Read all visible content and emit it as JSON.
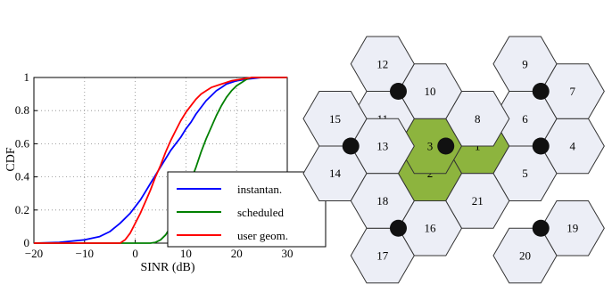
{
  "chart_data": {
    "type": "line",
    "xlabel": "SINR (dB)",
    "ylabel": "CDF",
    "xlim": [
      -20,
      30
    ],
    "ylim": [
      0,
      1
    ],
    "xticks": [
      "−20",
      "−10",
      "0",
      "10",
      "20",
      "30"
    ],
    "yticks": [
      "0",
      "0.2",
      "0.4",
      "0.6",
      "0.8",
      "1"
    ],
    "grid": true,
    "legend_position": "lower-right",
    "series": [
      {
        "name": "instantan.",
        "color": "#0000ff",
        "points": [
          [
            -20,
            0
          ],
          [
            -15,
            0.005
          ],
          [
            -10,
            0.02
          ],
          [
            -7,
            0.04
          ],
          [
            -5,
            0.07
          ],
          [
            -3,
            0.12
          ],
          [
            -1,
            0.18
          ],
          [
            0,
            0.22
          ],
          [
            1,
            0.26
          ],
          [
            2,
            0.31
          ],
          [
            3,
            0.36
          ],
          [
            4,
            0.41
          ],
          [
            5,
            0.46
          ],
          [
            6,
            0.51
          ],
          [
            7,
            0.56
          ],
          [
            8,
            0.6
          ],
          [
            9,
            0.64
          ],
          [
            10,
            0.69
          ],
          [
            11,
            0.73
          ],
          [
            12,
            0.78
          ],
          [
            13,
            0.82
          ],
          [
            14,
            0.86
          ],
          [
            15,
            0.89
          ],
          [
            16,
            0.92
          ],
          [
            17,
            0.94
          ],
          [
            18,
            0.96
          ],
          [
            20,
            0.98
          ],
          [
            22,
            0.99
          ],
          [
            25,
            1.0
          ],
          [
            30,
            1.0
          ]
        ]
      },
      {
        "name": "scheduled",
        "color": "#008000",
        "points": [
          [
            -20,
            0
          ],
          [
            3,
            0
          ],
          [
            4,
            0.005
          ],
          [
            5,
            0.02
          ],
          [
            6,
            0.05
          ],
          [
            7,
            0.1
          ],
          [
            8,
            0.16
          ],
          [
            9,
            0.23
          ],
          [
            10,
            0.3
          ],
          [
            11,
            0.38
          ],
          [
            12,
            0.46
          ],
          [
            13,
            0.55
          ],
          [
            14,
            0.63
          ],
          [
            15,
            0.7
          ],
          [
            16,
            0.77
          ],
          [
            17,
            0.83
          ],
          [
            18,
            0.88
          ],
          [
            19,
            0.92
          ],
          [
            20,
            0.95
          ],
          [
            21,
            0.97
          ],
          [
            22,
            0.99
          ],
          [
            23,
            1.0
          ],
          [
            30,
            1.0
          ]
        ]
      },
      {
        "name": "user geom.",
        "color": "#ff0000",
        "points": [
          [
            -20,
            0
          ],
          [
            -3,
            0
          ],
          [
            -2,
            0.02
          ],
          [
            -1,
            0.06
          ],
          [
            0,
            0.12
          ],
          [
            1,
            0.18
          ],
          [
            2,
            0.25
          ],
          [
            3,
            0.32
          ],
          [
            4,
            0.4
          ],
          [
            5,
            0.47
          ],
          [
            6,
            0.55
          ],
          [
            7,
            0.62
          ],
          [
            8,
            0.68
          ],
          [
            9,
            0.74
          ],
          [
            10,
            0.79
          ],
          [
            11,
            0.83
          ],
          [
            12,
            0.87
          ],
          [
            13,
            0.9
          ],
          [
            14,
            0.92
          ],
          [
            15,
            0.94
          ],
          [
            17,
            0.96
          ],
          [
            19,
            0.98
          ],
          [
            21,
            0.99
          ],
          [
            23,
            1.0
          ],
          [
            30,
            1.0
          ]
        ]
      }
    ]
  },
  "network_map": {
    "cells": [
      {
        "label": "1",
        "col": 1,
        "row": 0,
        "highlighted": true
      },
      {
        "label": "2",
        "col": 0,
        "row": 1,
        "highlighted": true
      },
      {
        "label": "3",
        "col": 0,
        "row": 0,
        "highlighted": true
      },
      {
        "label": "4",
        "col": 3,
        "row": 0,
        "highlighted": false
      },
      {
        "label": "5",
        "col": 2,
        "row": 1,
        "highlighted": false
      },
      {
        "label": "6",
        "col": 2,
        "row": -1,
        "highlighted": false
      },
      {
        "label": "7",
        "col": 3,
        "row": -2,
        "highlighted": false
      },
      {
        "label": "8",
        "col": 1,
        "row": -1,
        "highlighted": false
      },
      {
        "label": "9",
        "col": 2,
        "row": -3,
        "highlighted": false
      },
      {
        "label": "10",
        "col": 0,
        "row": -2,
        "highlighted": false
      },
      {
        "label": "11",
        "col": -1,
        "row": -1,
        "highlighted": false
      },
      {
        "label": "12",
        "col": -1,
        "row": -3,
        "highlighted": false
      },
      {
        "label": "13",
        "col": -1,
        "row": 0,
        "highlighted": false
      },
      {
        "label": "14",
        "col": -2,
        "row": 1,
        "highlighted": false
      },
      {
        "label": "15",
        "col": -2,
        "row": -1,
        "highlighted": false
      },
      {
        "label": "16",
        "col": 0,
        "row": 3,
        "highlighted": false
      },
      {
        "label": "17",
        "col": -1,
        "row": 4,
        "highlighted": false
      },
      {
        "label": "18",
        "col": -1,
        "row": 2,
        "highlighted": false
      },
      {
        "label": "19",
        "col": 3,
        "row": 3,
        "highlighted": false
      },
      {
        "label": "20",
        "col": 2,
        "row": 4,
        "highlighted": false
      },
      {
        "label": "21",
        "col": 1,
        "row": 2,
        "highlighted": false
      }
    ],
    "sites": [
      {
        "col": -0.667,
        "row": -2
      },
      {
        "col": 2.333,
        "row": -2
      },
      {
        "col": -1.667,
        "row": 0
      },
      {
        "col": 2.333,
        "row": 0
      },
      {
        "col": -0.667,
        "row": 3
      },
      {
        "col": 2.333,
        "row": 3
      },
      {
        "col": 0.333,
        "row": 0
      }
    ],
    "colors": {
      "cell_fill": "#eceef6",
      "cell_highlight": "#8db43e",
      "cell_stroke": "#333333",
      "site_dot": "#111111"
    }
  }
}
